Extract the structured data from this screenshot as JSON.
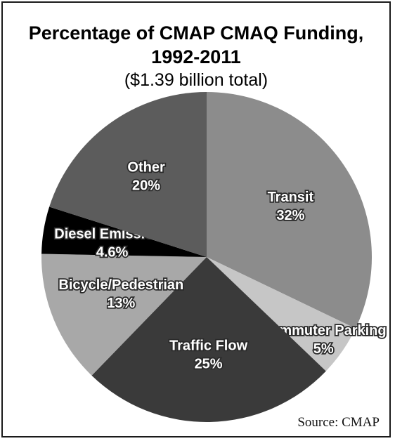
{
  "chart_data": {
    "type": "pie",
    "title": "Percentage of CMAP CMAQ Funding,",
    "title_line2": "1992-2011",
    "subtitle": "($1.39 billion total)",
    "slices": [
      {
        "label": "Transit",
        "pct_text": "32%",
        "value": 32,
        "color": "#8c8c8c"
      },
      {
        "label": "Commuter Parking",
        "pct_text": "5%",
        "value": 5,
        "color": "#c6c6c6"
      },
      {
        "label": "Traffic Flow",
        "pct_text": "25%",
        "value": 25,
        "color": "#3a3a3a"
      },
      {
        "label": "Bicycle/Pedestrian",
        "pct_text": "13%",
        "value": 13,
        "color": "#a8a8a8"
      },
      {
        "label": "Diesel Emissions",
        "pct_text": "4.6%",
        "value": 4.6,
        "color": "#000000"
      },
      {
        "label": "Other",
        "pct_text": "20%",
        "value": 20,
        "color": "#5c5c5c"
      }
    ],
    "source": "Source: CMAP"
  }
}
